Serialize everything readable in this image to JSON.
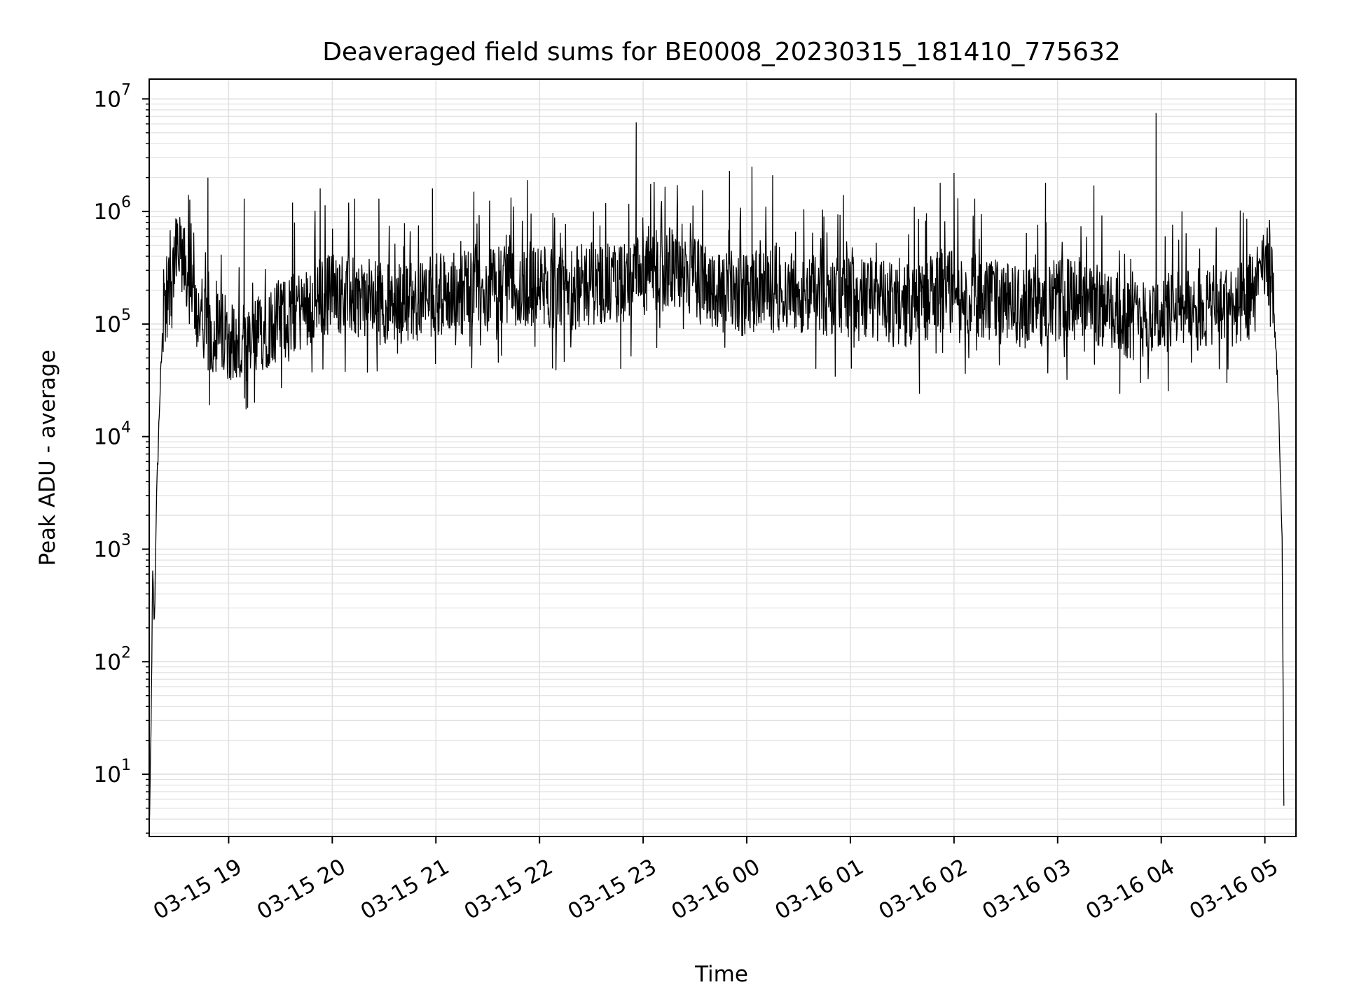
{
  "chart_data": {
    "type": "line",
    "title": "Deaveraged field sums for BE0008_20230315_181410_775632",
    "xlabel": "Time",
    "ylabel": "Peak ADU - average",
    "yscale": "log",
    "ylim": [
      2.8,
      15000000
    ],
    "xlim": [
      "2023-03-15 18:14",
      "2023-03-16 05:18"
    ],
    "grid": true,
    "line_color": "#000000",
    "grid_color": "#e0e0e0",
    "x_ticks": [
      {
        "value": "2023-03-15 19:00",
        "label": "03-15 19"
      },
      {
        "value": "2023-03-15 20:00",
        "label": "03-15 20"
      },
      {
        "value": "2023-03-15 21:00",
        "label": "03-15 21"
      },
      {
        "value": "2023-03-15 22:00",
        "label": "03-15 22"
      },
      {
        "value": "2023-03-15 23:00",
        "label": "03-15 23"
      },
      {
        "value": "2023-03-16 00:00",
        "label": "03-16 00"
      },
      {
        "value": "2023-03-16 01:00",
        "label": "03-16 01"
      },
      {
        "value": "2023-03-16 02:00",
        "label": "03-16 02"
      },
      {
        "value": "2023-03-16 03:00",
        "label": "03-16 03"
      },
      {
        "value": "2023-03-16 04:00",
        "label": "03-16 04"
      },
      {
        "value": "2023-03-16 05:00",
        "label": "03-16 05"
      }
    ],
    "y_ticks": [
      {
        "value": 10,
        "base": "10",
        "exp": "1"
      },
      {
        "value": 100,
        "base": "10",
        "exp": "2"
      },
      {
        "value": 1000,
        "base": "10",
        "exp": "3"
      },
      {
        "value": 10000,
        "base": "10",
        "exp": "4"
      },
      {
        "value": 100000,
        "base": "10",
        "exp": "5"
      },
      {
        "value": 1000000,
        "base": "10",
        "exp": "6"
      },
      {
        "value": 10000000,
        "base": "10",
        "exp": "7"
      }
    ],
    "series": [
      {
        "x": [
          "2023-03-15 18:14",
          "2023-03-15 18:15",
          "2023-03-15 18:16",
          "2023-03-15 18:17",
          "2023-03-15 18:18",
          "2023-03-15 18:20",
          "2023-03-15 18:22",
          "2023-03-15 18:25",
          "2023-03-15 18:28",
          "2023-03-15 18:32",
          "2023-03-15 18:35",
          "2023-03-15 18:40",
          "2023-03-15 18:45",
          "2023-03-15 18:50",
          "2023-03-15 18:55",
          "2023-03-15 19:00",
          "2023-03-15 19:05",
          "2023-03-15 19:10",
          "2023-03-15 19:15",
          "2023-03-15 19:20",
          "2023-03-15 19:30",
          "2023-03-15 19:40",
          "2023-03-15 19:50",
          "2023-03-15 20:00",
          "2023-03-15 20:15",
          "2023-03-15 20:30",
          "2023-03-15 20:45",
          "2023-03-15 21:00",
          "2023-03-15 21:15",
          "2023-03-15 21:30",
          "2023-03-15 21:45",
          "2023-03-15 22:00",
          "2023-03-15 22:15",
          "2023-03-15 22:30",
          "2023-03-15 22:45",
          "2023-03-15 23:00",
          "2023-03-15 23:15",
          "2023-03-15 23:30",
          "2023-03-15 23:45",
          "2023-03-16 00:00",
          "2023-03-16 00:15",
          "2023-03-16 00:30",
          "2023-03-16 00:45",
          "2023-03-16 01:00",
          "2023-03-16 01:15",
          "2023-03-16 01:30",
          "2023-03-16 01:45",
          "2023-03-16 02:00",
          "2023-03-16 02:15",
          "2023-03-16 02:30",
          "2023-03-16 02:45",
          "2023-03-16 03:00",
          "2023-03-16 03:15",
          "2023-03-16 03:30",
          "2023-03-16 03:45",
          "2023-03-16 04:00",
          "2023-03-16 04:15",
          "2023-03-16 04:30",
          "2023-03-16 04:45",
          "2023-03-16 04:55",
          "2023-03-16 05:00",
          "2023-03-16 05:03",
          "2023-03-16 05:05",
          "2023-03-16 05:08",
          "2023-03-16 05:10",
          "2023-03-16 05:11"
        ],
        "y": [
          3,
          20,
          600,
          200,
          2000,
          20000,
          100000,
          200000,
          350000,
          400000,
          300000,
          150000,
          90000,
          80000,
          85000,
          80000,
          60000,
          50000,
          70000,
          90000,
          110000,
          130000,
          160000,
          200000,
          170000,
          150000,
          160000,
          180000,
          190000,
          200000,
          220000,
          210000,
          200000,
          230000,
          220000,
          260000,
          320000,
          260000,
          200000,
          180000,
          210000,
          190000,
          170000,
          180000,
          160000,
          140000,
          170000,
          200000,
          180000,
          150000,
          140000,
          160000,
          170000,
          130000,
          110000,
          120000,
          130000,
          140000,
          150000,
          200000,
          300000,
          320000,
          150000,
          20000,
          1000,
          5
        ]
      }
    ],
    "spikes": [
      {
        "x": "2023-03-15 18:30",
        "y": 850000
      },
      {
        "x": "2023-03-15 18:48",
        "y": 2000000
      },
      {
        "x": "2023-03-15 19:09",
        "y": 1300000
      },
      {
        "x": "2023-03-15 19:37",
        "y": 1200000
      },
      {
        "x": "2023-03-15 19:53",
        "y": 1600000
      },
      {
        "x": "2023-03-15 20:13",
        "y": 1300000
      },
      {
        "x": "2023-03-15 20:27",
        "y": 1300000
      },
      {
        "x": "2023-03-15 20:58",
        "y": 1600000
      },
      {
        "x": "2023-03-15 21:22",
        "y": 1500000
      },
      {
        "x": "2023-03-15 21:53",
        "y": 1900000
      },
      {
        "x": "2023-03-15 22:35",
        "y": 750000
      },
      {
        "x": "2023-03-15 22:56",
        "y": 6200000
      },
      {
        "x": "2023-03-15 23:20",
        "y": 900000
      },
      {
        "x": "2023-03-15 23:50",
        "y": 2300000
      },
      {
        "x": "2023-03-16 00:03",
        "y": 2500000
      },
      {
        "x": "2023-03-16 00:15",
        "y": 2100000
      },
      {
        "x": "2023-03-16 00:56",
        "y": 1400000
      },
      {
        "x": "2023-03-16 01:37",
        "y": 1100000
      },
      {
        "x": "2023-03-16 01:52",
        "y": 1800000
      },
      {
        "x": "2023-03-16 02:00",
        "y": 2200000
      },
      {
        "x": "2023-03-16 02:12",
        "y": 1300000
      },
      {
        "x": "2023-03-16 02:53",
        "y": 1800000
      },
      {
        "x": "2023-03-16 03:21",
        "y": 1700000
      },
      {
        "x": "2023-03-16 03:57",
        "y": 7500000
      },
      {
        "x": "2023-03-16 04:12",
        "y": 1000000
      },
      {
        "x": "2023-03-16 04:51",
        "y": 400000
      }
    ],
    "dips": [
      {
        "x": "2023-03-15 18:49",
        "y": 19000
      },
      {
        "x": "2023-03-15 19:11",
        "y": 18000
      },
      {
        "x": "2023-03-15 19:15",
        "y": 20000
      },
      {
        "x": "2023-03-15 20:26",
        "y": 38000
      },
      {
        "x": "2023-03-15 22:47",
        "y": 40000
      },
      {
        "x": "2023-03-16 00:40",
        "y": 40000
      },
      {
        "x": "2023-03-16 01:40",
        "y": 24000
      },
      {
        "x": "2023-03-16 03:36",
        "y": 24000
      },
      {
        "x": "2023-03-16 03:48",
        "y": 30000
      },
      {
        "x": "2023-03-16 04:38",
        "y": 30000
      }
    ]
  }
}
